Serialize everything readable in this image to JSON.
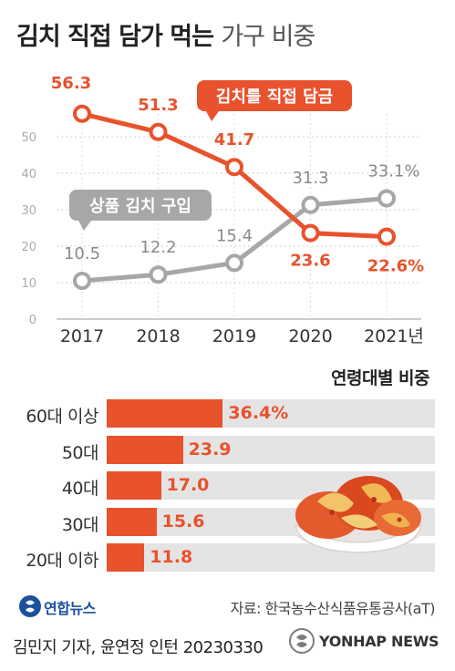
{
  "title": {
    "bold": "김치 직접 담가 먹는",
    "light": "가구 비중"
  },
  "chart_data": [
    {
      "type": "line",
      "x": [
        "2017",
        "2018",
        "2019",
        "2020",
        "2021년"
      ],
      "y_ticks": [
        0,
        10,
        20,
        30,
        40,
        50
      ],
      "ylim": [
        0,
        60
      ],
      "grid": true,
      "series": [
        {
          "name": "김치를 직접 담금",
          "values": [
            56.3,
            51.3,
            41.7,
            23.6,
            22.6
          ],
          "labels": [
            "56.3",
            "51.3",
            "41.7",
            "23.6",
            "22.6%"
          ],
          "color": "#e8522c"
        },
        {
          "name": "상품 김치 구입",
          "values": [
            10.5,
            12.2,
            15.4,
            31.3,
            33.1
          ],
          "labels": [
            "10.5",
            "12.2",
            "15.4",
            "31.3",
            "33.1%"
          ],
          "color": "#a7a7a7"
        }
      ]
    },
    {
      "type": "bar",
      "title": "연령대별 비중",
      "categories": [
        "60대 이상",
        "50대",
        "40대",
        "30대",
        "20대 이하"
      ],
      "values": [
        36.4,
        23.9,
        17.0,
        15.6,
        11.8
      ],
      "labels": [
        "36.4%",
        "23.9",
        "17.0",
        "15.6",
        "11.8"
      ],
      "color": "#e8522c"
    }
  ],
  "source": "자료: 한국농수산식품유통공사(aT)",
  "logo_text": "연합뉴스",
  "credit": "김민지 기자, 윤연정 인턴  20230330",
  "watermark": "YONHAP NEWS",
  "icons": {
    "logo": "yonhap-logo-icon",
    "image": "kimchi-image"
  }
}
